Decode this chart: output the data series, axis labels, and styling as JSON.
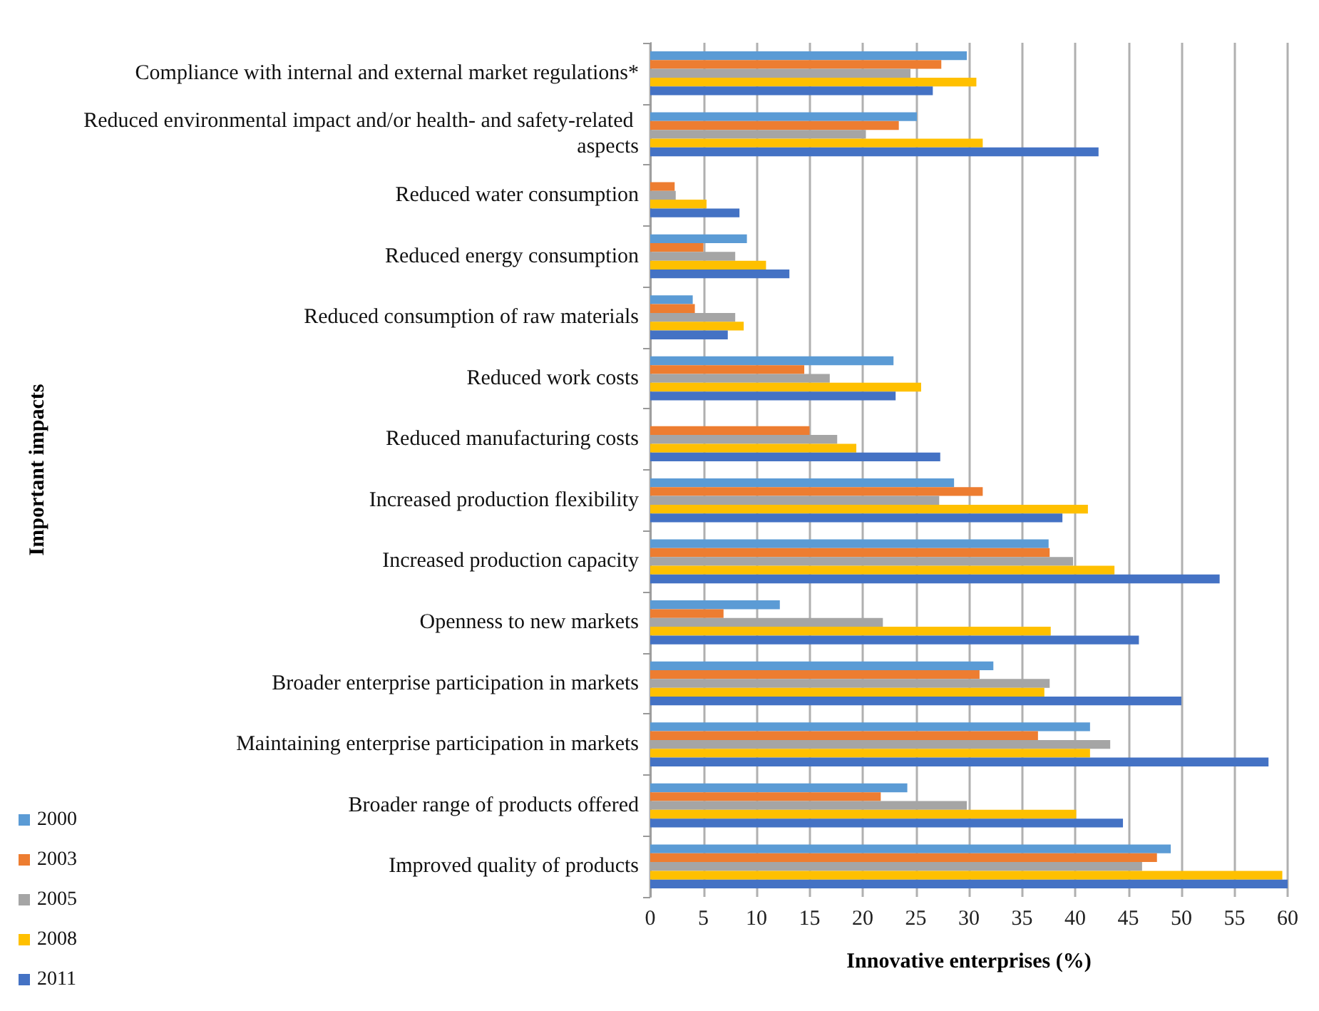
{
  "chart_data": {
    "type": "bar",
    "orientation": "horizontal",
    "xlabel": "Innovative enterprises (%)",
    "ylabel": "Important impacts",
    "categories": [
      "Compliance with internal and external market regulations*",
      "Reduced environmental impact and/or health- and safety-related aspects",
      "Reduced water consumption",
      "Reduced energy consumption",
      "Reduced consumption of raw materials",
      "Reduced work costs",
      "Reduced manufacturing costs",
      "Increased production flexibility",
      "Increased production capacity",
      "Openness to new markets",
      "Broader enterprise participation in markets",
      "Maintaining enterprise participation in markets",
      "Broader range of products offered",
      "Improved quality of products"
    ],
    "series": [
      {
        "name": "2000",
        "color": "#5b9bd5",
        "values": [
          29.8,
          25.1,
          null,
          9.1,
          4.0,
          22.9,
          null,
          28.6,
          37.5,
          12.2,
          32.3,
          41.4,
          24.2,
          49.0
        ]
      },
      {
        "name": "2003",
        "color": "#ed7d31",
        "values": [
          27.4,
          23.4,
          2.3,
          5.0,
          4.2,
          14.5,
          15.0,
          31.3,
          37.6,
          6.9,
          31.0,
          36.5,
          21.7,
          47.7
        ]
      },
      {
        "name": "2005",
        "color": "#a5a5a5",
        "values": [
          24.5,
          20.3,
          2.4,
          8.0,
          8.0,
          16.9,
          17.6,
          27.2,
          39.8,
          21.9,
          37.6,
          43.3,
          29.8,
          46.3
        ]
      },
      {
        "name": "2008",
        "color": "#ffc000",
        "values": [
          30.7,
          31.3,
          5.3,
          10.9,
          8.8,
          25.5,
          19.4,
          41.2,
          43.7,
          37.7,
          37.1,
          41.4,
          40.1,
          59.5
        ]
      },
      {
        "name": "2011",
        "color": "#4472c4",
        "values": [
          26.6,
          42.2,
          8.4,
          13.1,
          7.3,
          23.1,
          27.3,
          38.8,
          53.6,
          46.0,
          50.0,
          58.2,
          44.5,
          60.0
        ]
      }
    ],
    "xlim": [
      0,
      60
    ],
    "xticks": [
      0,
      5,
      10,
      15,
      20,
      25,
      30,
      35,
      40,
      45,
      50,
      55,
      60
    ],
    "grid": "x",
    "legend": "bottom left"
  }
}
